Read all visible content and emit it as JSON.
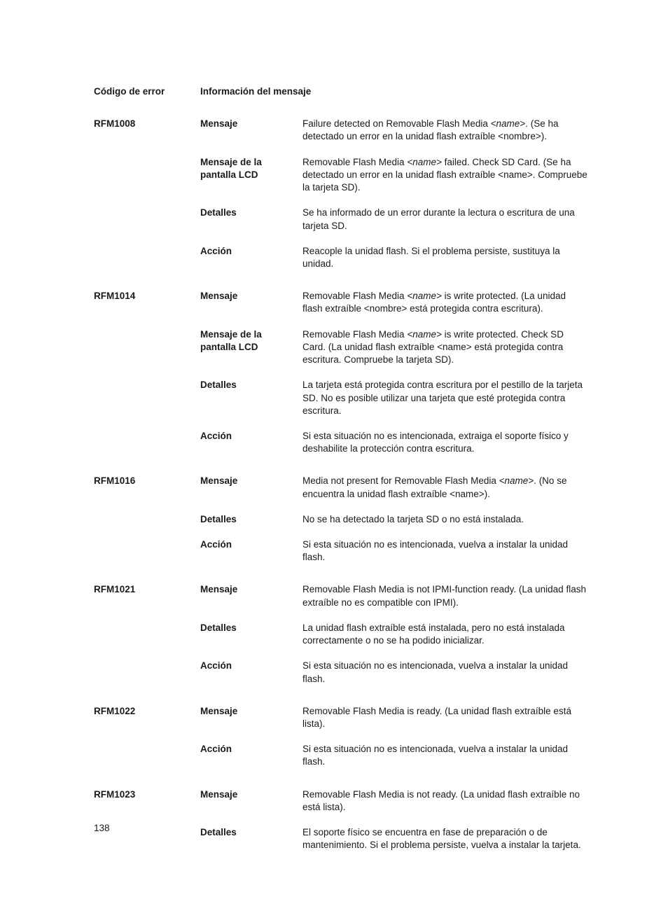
{
  "page_number": "138",
  "header": {
    "code": "Código de error",
    "info": "Información del mensaje"
  },
  "labels": {
    "mensaje": "Mensaje",
    "lcd": "Mensaje de la pantalla LCD",
    "detalles": "Detalles",
    "accion": "Acción"
  },
  "entries": [
    {
      "code": "RFM1008",
      "rows": [
        {
          "label": "mensaje",
          "value": "Failure detected on Removable Flash Media <name>. (Se ha detectado un error en la unidad flash extraíble <nombre>).",
          "italic_name": true
        },
        {
          "label": "lcd",
          "value": "Removable Flash Media <name> failed. Check SD Card. (Se ha detectado un error en la unidad flash extraíble <name>. Compruebe la tarjeta SD).",
          "italic_name": true
        },
        {
          "label": "detalles",
          "value": "Se ha informado de un error durante la lectura o escritura de una tarjeta SD."
        },
        {
          "label": "accion",
          "value": "Reacople la unidad flash. Si el problema persiste, sustituya la unidad."
        }
      ]
    },
    {
      "code": "RFM1014",
      "rows": [
        {
          "label": "mensaje",
          "value": "Removable Flash Media <name> is write protected. (La unidad flash extraíble <nombre> está protegida contra escritura).",
          "italic_name": true
        },
        {
          "label": "lcd",
          "value": "Removable Flash Media <name> is write protected. Check SD Card. (La unidad flash extraíble <name> está protegida contra escritura. Compruebe la tarjeta SD).",
          "italic_name": true
        },
        {
          "label": "detalles",
          "value": "La tarjeta está protegida contra escritura por el pestillo de la tarjeta SD. No es posible utilizar una tarjeta que esté protegida contra escritura."
        },
        {
          "label": "accion",
          "value": "Si esta situación no es intencionada, extraiga el soporte físico y deshabilite la protección contra escritura."
        }
      ]
    },
    {
      "code": "RFM1016",
      "rows": [
        {
          "label": "mensaje",
          "value": "Media not present for Removable Flash Media <name>. (No se encuentra la unidad flash extraíble <name>).",
          "italic_name": true
        },
        {
          "label": "detalles",
          "value": "No se ha detectado la tarjeta SD o no está instalada."
        },
        {
          "label": "accion",
          "value": "Si esta situación no es intencionada, vuelva a instalar la unidad flash."
        }
      ]
    },
    {
      "code": "RFM1021",
      "rows": [
        {
          "label": "mensaje",
          "value": "Removable Flash Media is not IPMI-function ready. (La unidad flash extraíble no es compatible con IPMI)."
        },
        {
          "label": "detalles",
          "value": "La unidad flash extraíble está instalada, pero no está instalada correctamente o no se ha podido inicializar."
        },
        {
          "label": "accion",
          "value": "Si esta situación no es intencionada, vuelva a instalar la unidad flash."
        }
      ]
    },
    {
      "code": "RFM1022",
      "rows": [
        {
          "label": "mensaje",
          "value": "Removable Flash Media is ready. (La unidad flash extraíble está lista)."
        },
        {
          "label": "accion",
          "value": "Si esta situación no es intencionada, vuelva a instalar la unidad flash."
        }
      ]
    },
    {
      "code": "RFM1023",
      "rows": [
        {
          "label": "mensaje",
          "value": "Removable Flash Media is not ready. (La unidad flash extraíble no está lista)."
        },
        {
          "label": "detalles",
          "value": "El soporte físico se encuentra en fase de preparación o de mantenimiento. Si el problema persiste, vuelva a instalar la tarjeta."
        }
      ]
    }
  ]
}
